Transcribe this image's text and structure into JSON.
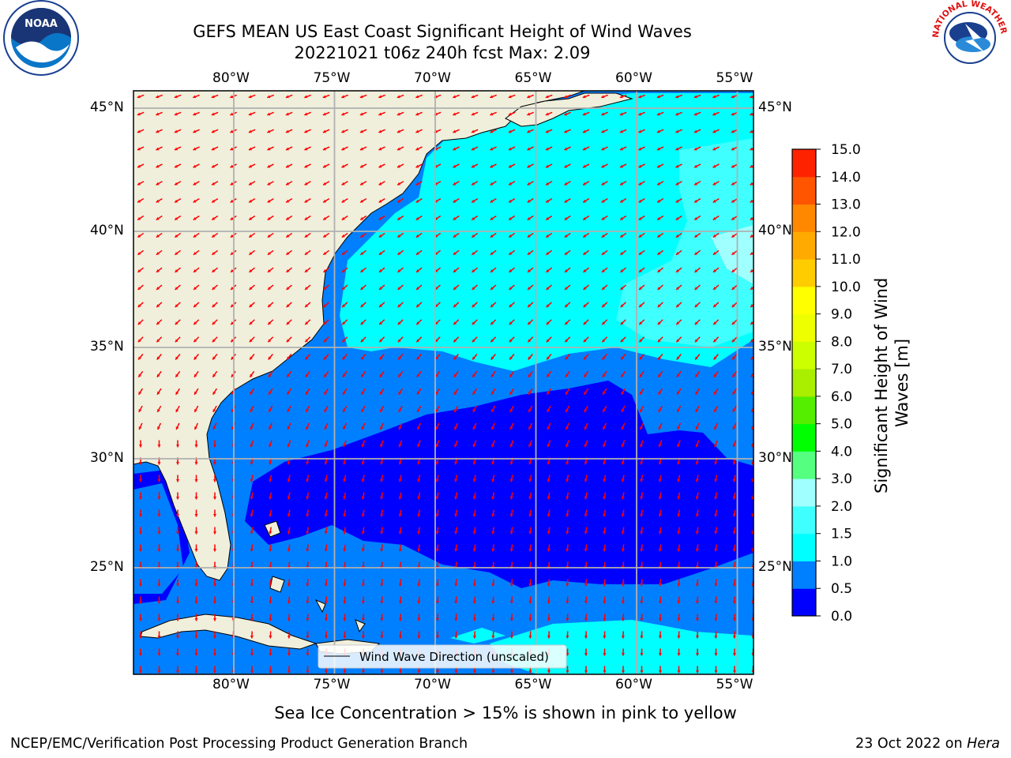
{
  "title": {
    "line1": "GEFS MEAN US East Coast Significant Height of Wind Waves",
    "line2": "20221021 t06z 240h fcst   Max: 2.09"
  },
  "map": {
    "lon_labels": [
      "80°W",
      "75°W",
      "70°W",
      "65°W",
      "60°W",
      "55°W"
    ],
    "lat_labels": [
      "45°N",
      "40°N",
      "35°N",
      "30°N",
      "25°N"
    ],
    "lon_values": [
      -80,
      -75,
      -70,
      -65,
      -60,
      -55
    ],
    "lat_values": [
      45,
      40,
      35,
      30,
      25
    ],
    "extent": {
      "lon_min": -85,
      "lon_max": -54.2,
      "lat_min": 20.5,
      "lat_max": 46
    },
    "legend_label": "Wind Wave Direction (unscaled)",
    "land_color": "#efefdc",
    "arrow_color": "#ff0000"
  },
  "colorbar": {
    "label": "Significant Height of Wind Waves [m]",
    "ticks": [
      "0.0",
      "0.5",
      "1.0",
      "1.5",
      "2.0",
      "3.0",
      "4.0",
      "5.0",
      "6.0",
      "7.0",
      "8.0",
      "9.0",
      "10.0",
      "11.0",
      "12.0",
      "13.0",
      "14.0",
      "15.0"
    ],
    "colors": [
      "#0000ff",
      "#0080ff",
      "#00ffff",
      "#40ffff",
      "#a0ffff",
      "#55ff80",
      "#00ff00",
      "#55ee00",
      "#aaee00",
      "#ccff00",
      "#eeff00",
      "#ffff00",
      "#ffcc00",
      "#ffaa00",
      "#ff8800",
      "#ff5500",
      "#ff2200"
    ]
  },
  "logos": {
    "left": "NOAA",
    "right": "NATIONAL WEATHER SERVICE"
  },
  "note": "Sea Ice Concentration > 15% is shown in pink to yellow",
  "footer": {
    "left": "NCEP/EMC/Verification Post Processing Product Generation Branch",
    "right_prefix": "23 Oct 2022 on ",
    "right_machine": "Hera"
  }
}
